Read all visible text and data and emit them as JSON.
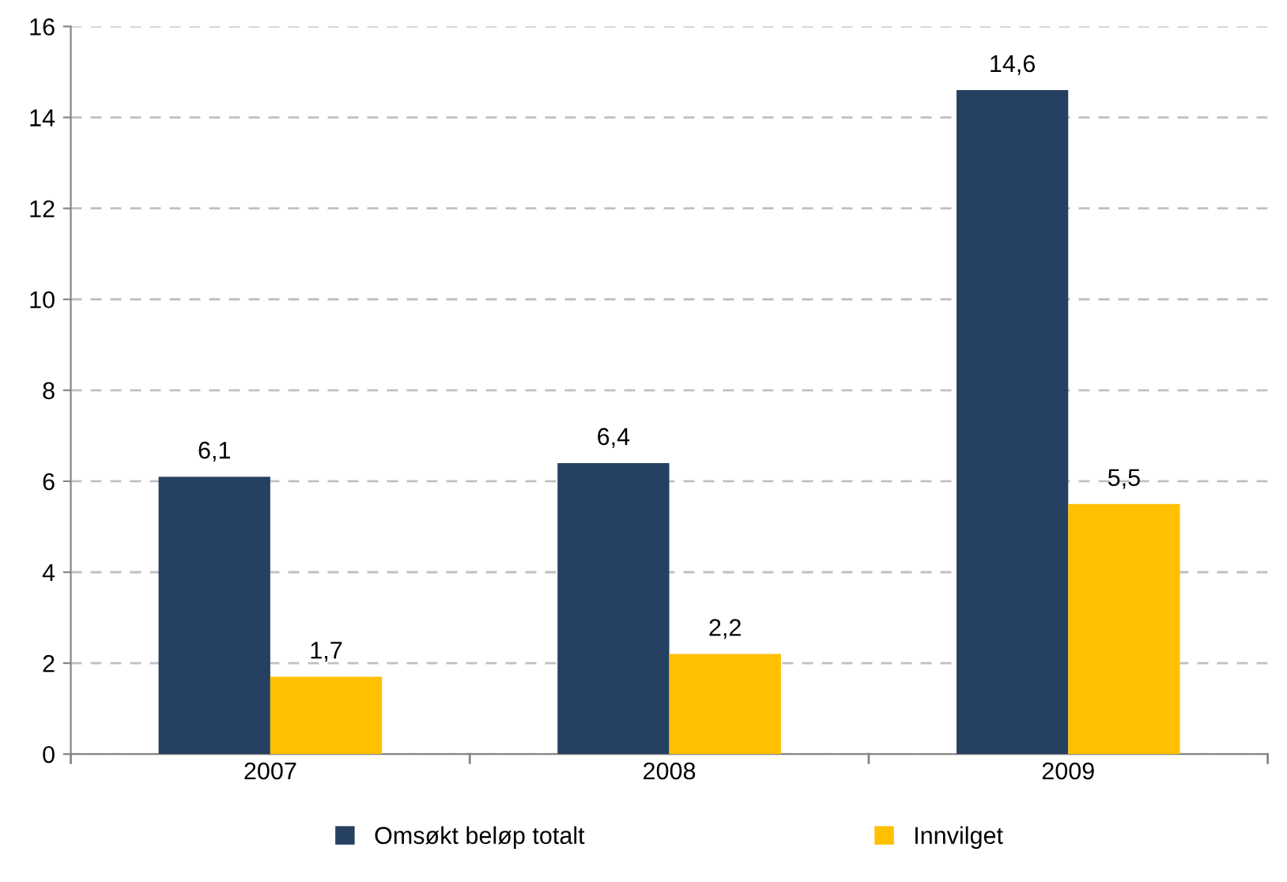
{
  "chart_data": {
    "type": "bar",
    "categories": [
      "2007",
      "2008",
      "2009"
    ],
    "series": [
      {
        "name": "Omsøkt beløp totalt",
        "color": "#264061",
        "values": [
          6.1,
          6.4,
          14.6
        ],
        "value_labels": [
          "6,1",
          "6,4",
          "14,6"
        ]
      },
      {
        "name": "Innvilget",
        "color": "#ffc000",
        "values": [
          1.7,
          2.2,
          5.5
        ],
        "value_labels": [
          "1,7",
          "2,2",
          "5,5"
        ]
      }
    ],
    "ylim": [
      0,
      16
    ],
    "yticks": [
      0,
      2,
      4,
      6,
      8,
      10,
      12,
      14,
      16
    ],
    "grid": "y",
    "legend": "bottom"
  }
}
